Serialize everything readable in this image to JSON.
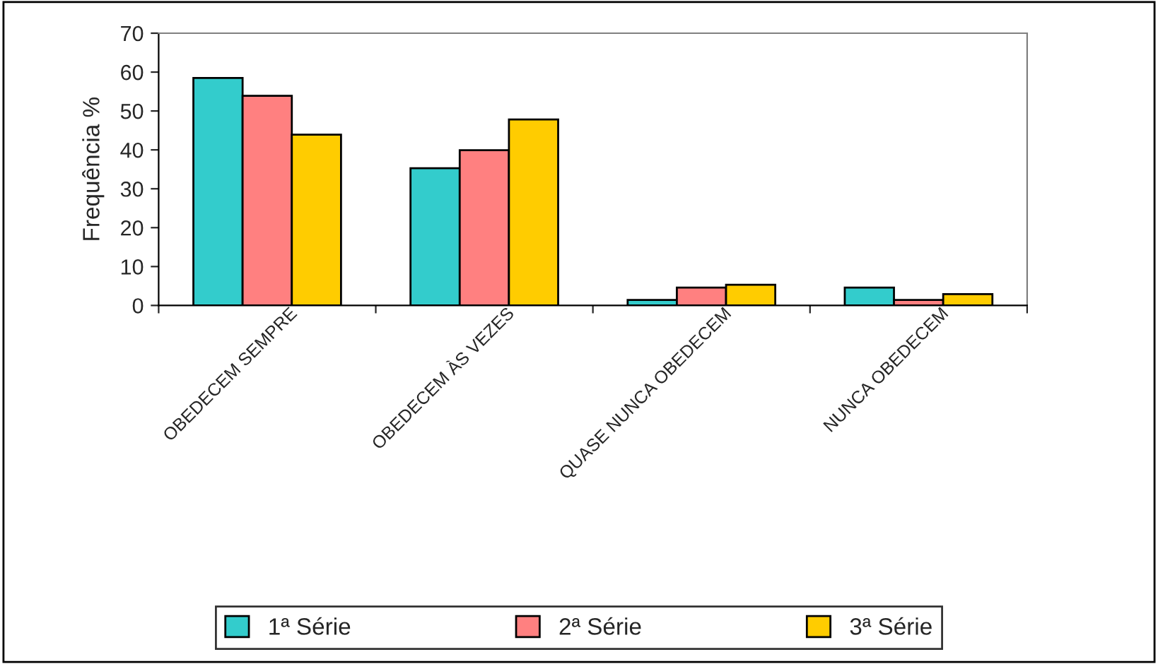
{
  "chart_data": {
    "type": "bar",
    "ylabel": "Frequência %",
    "categories": [
      "OBEDECEM SEMPRE",
      "OBEDECEM ÀS VEZES",
      "QUASE NUNCA OBEDECEM",
      "NUNCA OBEDECEM"
    ],
    "series": [
      {
        "name": "1ª Série",
        "color": "#33cccc",
        "values": [
          58.5,
          35.3,
          1.4,
          4.6
        ]
      },
      {
        "name": "2ª Série",
        "color": "#ff8080",
        "values": [
          53.9,
          39.9,
          4.6,
          1.4
        ]
      },
      {
        "name": "3ª Série",
        "color": "#ffcc00",
        "values": [
          43.9,
          47.8,
          5.3,
          2.9
        ]
      }
    ],
    "ylim": [
      0,
      70
    ],
    "yticks": [
      0,
      10,
      20,
      30,
      40,
      50,
      60,
      70
    ],
    "grid": false,
    "legend": "bottom"
  }
}
